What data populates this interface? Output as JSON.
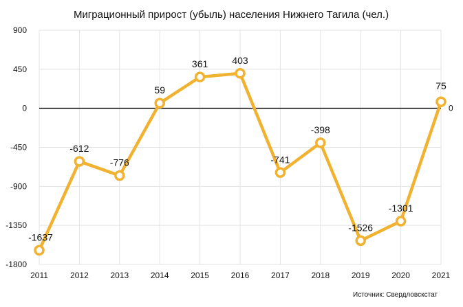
{
  "chart_data": {
    "type": "line",
    "title": "Миграционный прирост (убыль) населения Нижнего Тагила (чел.)",
    "xlabel": "",
    "ylabel": "",
    "categories": [
      "2011",
      "2012",
      "2013",
      "2014",
      "2015",
      "2016",
      "2017",
      "2018",
      "2019",
      "2020",
      "2021"
    ],
    "values": [
      -1637,
      -612,
      -776,
      59,
      361,
      403,
      -741,
      -398,
      -1526,
      -1301,
      75
    ],
    "data_labels": [
      "-1637",
      "-612",
      "-776",
      "59",
      "361",
      "403",
      "-741",
      "-398",
      "-1526",
      "-1301",
      "75"
    ],
    "yticks": [
      "900",
      "450",
      "0",
      "-450",
      "-900",
      "-1350",
      "-1800"
    ],
    "ylim": [
      -1800,
      900
    ],
    "grid": true,
    "zero_line_label": "0",
    "series_color": "#f0b230",
    "source": "Источник: Свердловскстат"
  }
}
